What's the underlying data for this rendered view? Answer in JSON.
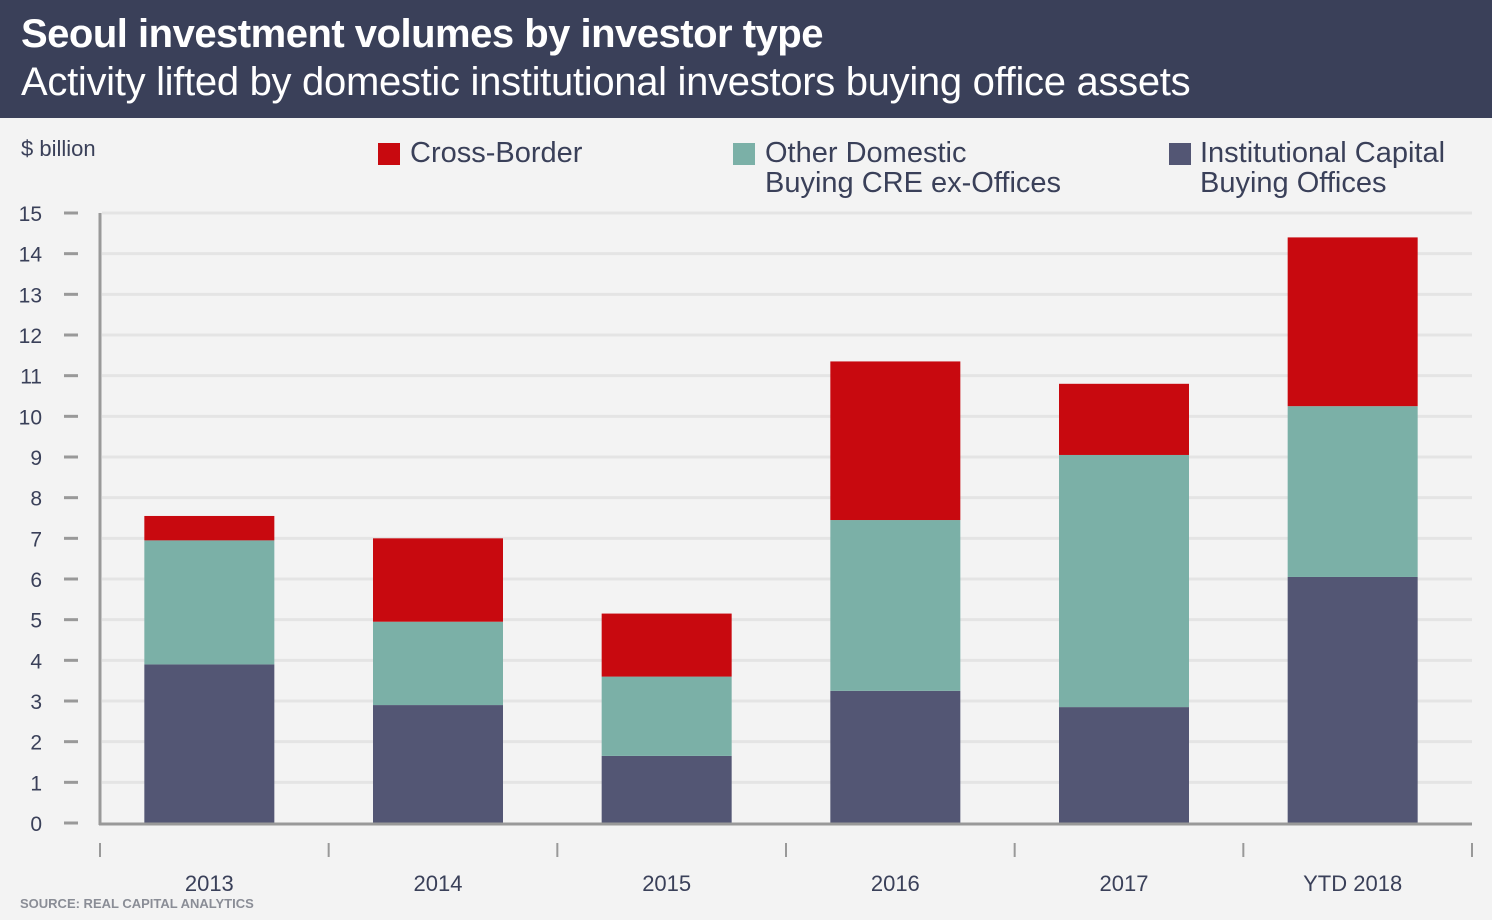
{
  "header": {
    "title": "Seoul investment volumes by investor type",
    "subtitle": "Activity lifted by domestic institutional investors buying office assets"
  },
  "source": "SOURCE: REAL CAPITAL ANALYTICS",
  "colors": {
    "header_bg": "#3a4059",
    "cross_border": "#c8090f",
    "other_domestic": "#7bb0a7",
    "institutional": "#535674",
    "grid": "#e4e4e4",
    "axis": "#999999"
  },
  "chart_data": {
    "type": "bar",
    "stacked": true,
    "title": "Seoul investment volumes by investor type",
    "subtitle": "Activity lifted by domestic institutional investors buying office assets",
    "xlabel": "",
    "ylabel": "$ billion",
    "ylim": [
      0,
      15
    ],
    "yticks": [
      0,
      1,
      2,
      3,
      4,
      5,
      6,
      7,
      8,
      9,
      10,
      11,
      12,
      13,
      14,
      15
    ],
    "grid": true,
    "legend_position": "top",
    "categories": [
      "2013",
      "2014",
      "2015",
      "2016",
      "2017",
      "YTD 2018"
    ],
    "series": [
      {
        "name": "Institutional Capital Buying Offices",
        "legend_line1": "Institutional Capital",
        "legend_line2": "Buying Offices",
        "color": "#535674",
        "values": [
          3.9,
          2.9,
          1.65,
          3.25,
          2.85,
          6.05
        ]
      },
      {
        "name": "Other Domestic Buying CRE ex-Offices",
        "legend_line1": "Other Domestic",
        "legend_line2": "Buying CRE ex-Offices",
        "color": "#7bb0a7",
        "values": [
          3.05,
          2.05,
          1.95,
          4.2,
          6.2,
          4.2
        ]
      },
      {
        "name": "Cross-Border",
        "legend_line1": "Cross-Border",
        "legend_line2": "",
        "color": "#c8090f",
        "values": [
          0.6,
          2.05,
          1.55,
          3.9,
          1.75,
          4.15
        ]
      }
    ]
  }
}
